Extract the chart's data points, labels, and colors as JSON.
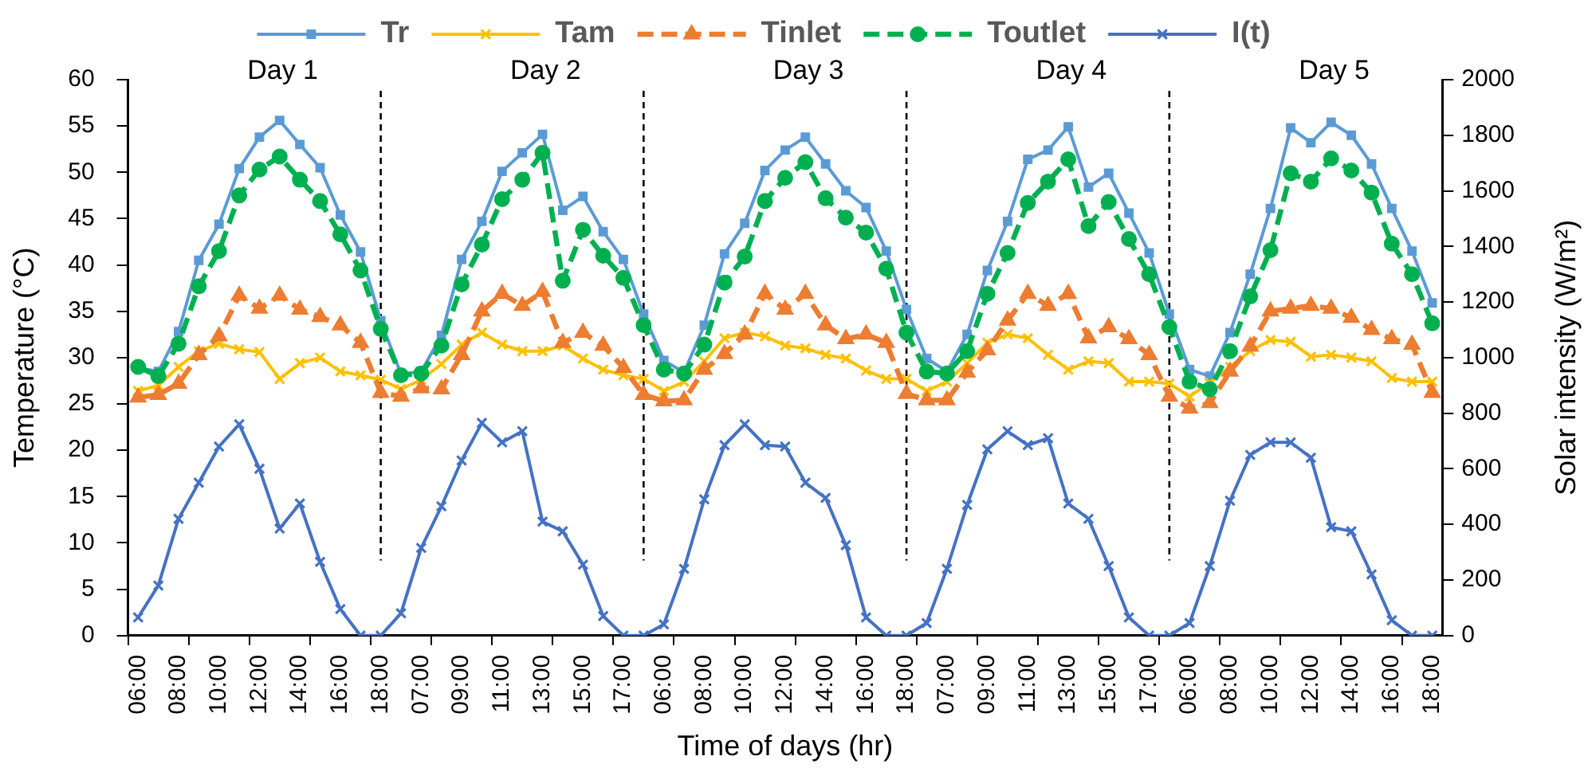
{
  "chart_data": {
    "type": "line",
    "xlabel": "Time of days (hr)",
    "ylabel": "Temperature (°C)",
    "y2label": "Solar intensity (W/m²)",
    "categories": [
      "06:00",
      null,
      "08:00",
      null,
      "10:00",
      null,
      "12:00",
      null,
      "14:00",
      null,
      "16:00",
      null,
      "18:00",
      null,
      "07:00",
      null,
      "09:00",
      null,
      "11:00",
      null,
      "13:00",
      null,
      "15:00",
      null,
      "17:00",
      null,
      "06:00",
      null,
      "08:00",
      null,
      "10:00",
      null,
      "12:00",
      null,
      "14:00",
      null,
      "16:00",
      null,
      "18:00",
      null,
      "07:00",
      null,
      "09:00",
      null,
      "11:00",
      null,
      "13:00",
      null,
      "15:00",
      null,
      "17:00",
      null,
      "06:00",
      null,
      "08:00",
      null,
      "10:00",
      null,
      "12:00",
      null,
      "14:00",
      null,
      "16:00",
      null,
      "18:00"
    ],
    "series": [
      {
        "name": "Tr",
        "color": "#5b9bd5",
        "marker": "square",
        "line_style": "solid",
        "values": [
          28.9,
          28.5,
          32.8,
          40.5,
          44.4,
          50.4,
          53.8,
          55.6,
          53.0,
          50.5,
          45.4,
          41.4,
          34.0,
          28.2,
          28.5,
          32.4,
          40.6,
          44.7,
          50.1,
          52.1,
          54.1,
          45.9,
          47.4,
          43.6,
          40.6,
          34.7,
          29.7,
          28.4,
          33.5,
          41.2,
          44.5,
          50.2,
          52.4,
          53.8,
          50.9,
          48.0,
          46.2,
          41.5,
          35.2,
          29.9,
          28.5,
          32.5,
          39.4,
          44.7,
          51.4,
          52.4,
          54.9,
          48.4,
          49.9,
          45.6,
          41.3,
          34.7,
          28.7,
          28.0,
          32.7,
          39.0,
          46.1,
          54.8,
          53.2,
          55.4,
          54.0,
          50.9,
          46.1,
          41.5,
          35.9
        ]
      },
      {
        "name": "Tam",
        "color": "#ffc000",
        "marker": "cross",
        "line_style": "solid",
        "values": [
          26.4,
          27.0,
          29.0,
          30.7,
          31.5,
          30.9,
          30.6,
          27.7,
          29.4,
          30.0,
          28.5,
          28.1,
          27.6,
          26.6,
          27.6,
          29.3,
          31.4,
          32.7,
          31.4,
          30.7,
          30.7,
          31.3,
          29.9,
          28.7,
          28.1,
          27.7,
          26.4,
          27.4,
          29.6,
          32.1,
          32.7,
          32.3,
          31.3,
          31.0,
          30.3,
          29.9,
          28.6,
          27.7,
          27.7,
          26.4,
          27.4,
          29.4,
          31.6,
          32.5,
          32.1,
          30.3,
          28.7,
          29.6,
          29.4,
          27.4,
          27.4,
          27.2,
          25.8,
          27.3,
          29.0,
          30.7,
          31.9,
          31.7,
          30.1,
          30.3,
          30.0,
          29.6,
          27.8,
          27.4,
          27.4
        ]
      },
      {
        "name": "Tinlet",
        "color": "#ed7d31",
        "marker": "triangle",
        "line_style": "dashed",
        "values": [
          25.7,
          26.0,
          27.2,
          30.3,
          32.3,
          36.7,
          35.3,
          36.7,
          35.2,
          34.4,
          33.5,
          31.6,
          26.2,
          25.8,
          26.7,
          26.6,
          30.3,
          35.0,
          36.9,
          35.6,
          37.1,
          31.6,
          32.7,
          31.3,
          28.9,
          26.0,
          25.3,
          25.4,
          28.7,
          30.4,
          32.5,
          36.9,
          35.2,
          36.9,
          33.5,
          32.0,
          32.5,
          31.6,
          26.1,
          25.4,
          25.4,
          28.4,
          30.8,
          34.0,
          36.9,
          35.6,
          36.9,
          32.1,
          33.3,
          32.0,
          30.3,
          25.8,
          24.5,
          25.1,
          28.5,
          31.2,
          35.0,
          35.3,
          35.6,
          35.3,
          34.3,
          33.0,
          32.0,
          31.4,
          26.2
        ]
      },
      {
        "name": "Toutlet",
        "color": "#00b050",
        "marker": "circle",
        "line_style": "dashed",
        "values": [
          29.0,
          28.0,
          31.5,
          37.7,
          41.5,
          47.5,
          50.3,
          51.7,
          49.2,
          46.9,
          43.3,
          39.4,
          33.1,
          28.1,
          28.3,
          31.3,
          37.9,
          42.2,
          47.1,
          49.2,
          52.1,
          38.3,
          43.8,
          41.0,
          38.6,
          33.5,
          28.7,
          28.3,
          31.4,
          38.1,
          40.9,
          46.9,
          49.4,
          51.1,
          47.2,
          45.1,
          43.5,
          39.6,
          32.7,
          28.5,
          28.3,
          30.7,
          36.9,
          41.3,
          46.7,
          49.0,
          51.4,
          44.2,
          46.8,
          42.8,
          39.0,
          33.3,
          27.4,
          26.6,
          30.7,
          36.6,
          41.6,
          49.9,
          49.0,
          51.5,
          50.2,
          47.8,
          42.3,
          39.0,
          33.7
        ]
      },
      {
        "name": "I(t)",
        "color": "#4472c4",
        "marker": "cross",
        "line_style": "solid",
        "axis": "y2",
        "values": [
          65,
          180,
          420,
          550,
          680,
          760,
          600,
          385,
          475,
          265,
          95,
          0,
          0,
          80,
          315,
          465,
          630,
          765,
          695,
          735,
          410,
          375,
          255,
          70,
          0,
          0,
          40,
          240,
          490,
          685,
          760,
          685,
          680,
          550,
          495,
          325,
          65,
          0,
          0,
          45,
          240,
          470,
          670,
          735,
          685,
          710,
          475,
          420,
          250,
          65,
          0,
          0,
          45,
          250,
          485,
          650,
          695,
          695,
          640,
          390,
          375,
          220,
          55,
          0,
          0
        ]
      }
    ],
    "ylim": [
      0,
      60
    ],
    "yticks": [
      0,
      5,
      10,
      15,
      20,
      25,
      30,
      35,
      40,
      45,
      50,
      55,
      60
    ],
    "y2lim": [
      0,
      2000
    ],
    "y2ticks": [
      0,
      200,
      400,
      600,
      800,
      1000,
      1200,
      1400,
      1600,
      1800,
      2000
    ],
    "legend": "top",
    "annotations": [
      "Day 1",
      "Day 2",
      "Day 3",
      "Day 4",
      "Day 5"
    ]
  }
}
